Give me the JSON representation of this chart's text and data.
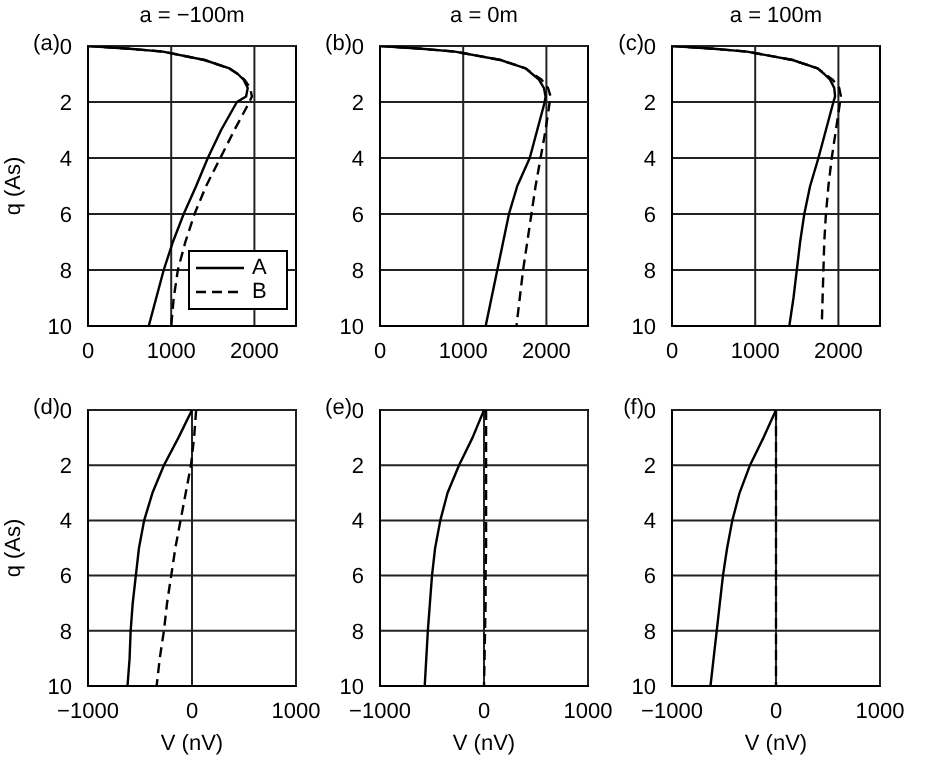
{
  "chart_data": [
    {
      "type": "line",
      "title": "a = −100m",
      "ylabel": "q (As)",
      "annotations": [
        "(a)"
      ],
      "xlim": [
        0,
        2500
      ],
      "xticks": [
        0,
        1000,
        2000
      ],
      "ylim": [
        10,
        0
      ],
      "yticks": [
        0,
        2,
        4,
        6,
        8,
        10
      ],
      "grid": true,
      "legend": "bottom right",
      "marker": "none",
      "series": [
        {
          "name": "A",
          "color": "#000000",
          "line_style": "solid",
          "x": [
            0,
            500,
            900,
            1400,
            1700,
            1800,
            1870,
            1920,
            1900,
            1790,
            1600,
            1440,
            1300,
            1150,
            1020,
            910,
            820,
            730
          ],
          "values": [
            0,
            0.1,
            0.2,
            0.5,
            0.8,
            1,
            1.2,
            1.5,
            1.8,
            2,
            3,
            4,
            5,
            6,
            7,
            8,
            9,
            10
          ]
        },
        {
          "name": "B",
          "color": "#000000",
          "line_style": "dashed",
          "x": [
            0,
            500,
            900,
            1400,
            1700,
            1800,
            1880,
            1950,
            1970,
            1940,
            1760,
            1590,
            1420,
            1280,
            1170,
            1080,
            1030,
            1000
          ],
          "values": [
            0,
            0.1,
            0.2,
            0.5,
            0.8,
            1,
            1.2,
            1.5,
            1.8,
            2,
            3,
            4,
            5,
            6,
            7,
            8,
            9,
            10
          ]
        }
      ]
    },
    {
      "type": "line",
      "title": "a = 0m",
      "annotations": [
        "(b)"
      ],
      "xlim": [
        0,
        2500
      ],
      "xticks": [
        0,
        1000,
        2000
      ],
      "ylim": [
        10,
        0
      ],
      "yticks": [
        0,
        2,
        4,
        6,
        8,
        10
      ],
      "grid": true,
      "marker": "none",
      "series": [
        {
          "color": "#000000",
          "line_style": "solid",
          "x": [
            0,
            500,
            900,
            1450,
            1750,
            1830,
            1910,
            1970,
            1990,
            1980,
            1890,
            1800,
            1650,
            1550,
            1480,
            1410,
            1340,
            1270
          ],
          "values": [
            0,
            0.1,
            0.2,
            0.5,
            0.8,
            1,
            1.2,
            1.5,
            1.8,
            2,
            3,
            4,
            5,
            6,
            7,
            8,
            9,
            10
          ]
        },
        {
          "color": "#000000",
          "line_style": "dashed",
          "x": [
            0,
            500,
            900,
            1450,
            1750,
            1840,
            1940,
            2020,
            2050,
            2040,
            1990,
            1930,
            1870,
            1820,
            1770,
            1720,
            1680,
            1640
          ],
          "values": [
            0,
            0.1,
            0.2,
            0.5,
            0.8,
            1,
            1.2,
            1.5,
            1.8,
            2,
            3,
            4,
            5,
            6,
            7,
            8,
            9,
            10
          ]
        }
      ]
    },
    {
      "type": "line",
      "title": "a = 100m",
      "annotations": [
        "(c)"
      ],
      "xlim": [
        0,
        2500
      ],
      "xticks": [
        0,
        1000,
        2000
      ],
      "ylim": [
        10,
        0
      ],
      "yticks": [
        0,
        2,
        4,
        6,
        8,
        10
      ],
      "grid": true,
      "marker": "none",
      "series": [
        {
          "color": "#000000",
          "line_style": "solid",
          "x": [
            0,
            500,
            900,
            1450,
            1750,
            1830,
            1900,
            1950,
            1960,
            1940,
            1850,
            1760,
            1660,
            1590,
            1540,
            1500,
            1460,
            1410
          ],
          "values": [
            0,
            0.1,
            0.2,
            0.5,
            0.8,
            1,
            1.2,
            1.5,
            1.8,
            2,
            3,
            4,
            5,
            6,
            7,
            8,
            9,
            10
          ]
        },
        {
          "color": "#000000",
          "line_style": "dashed",
          "x": [
            0,
            500,
            900,
            1450,
            1750,
            1840,
            1930,
            2010,
            2030,
            2020,
            1970,
            1920,
            1880,
            1850,
            1830,
            1820,
            1810,
            1800
          ],
          "values": [
            0,
            0.1,
            0.2,
            0.5,
            0.8,
            1,
            1.2,
            1.5,
            1.8,
            2,
            3,
            4,
            5,
            6,
            7,
            8,
            9,
            10
          ]
        }
      ]
    },
    {
      "type": "line",
      "xlabel": "V (nV)",
      "ylabel": "q (As)",
      "annotations": [
        "(d)"
      ],
      "xlim": [
        -1000,
        1000
      ],
      "xticks": [
        -1000,
        0,
        1000
      ],
      "ylim": [
        10,
        0
      ],
      "yticks": [
        0,
        2,
        4,
        6,
        8,
        10
      ],
      "grid": true,
      "marker": "none",
      "series": [
        {
          "color": "#000000",
          "line_style": "solid",
          "x": [
            0,
            -130,
            -270,
            -380,
            -460,
            -510,
            -540,
            -570,
            -590,
            -600,
            -620
          ],
          "values": [
            0,
            1,
            2,
            3,
            4,
            5,
            6,
            7,
            8,
            9,
            10
          ]
        },
        {
          "color": "#000000",
          "line_style": "dashed",
          "x": [
            40,
            20,
            -10,
            -60,
            -110,
            -160,
            -200,
            -240,
            -270,
            -310,
            -340
          ],
          "values": [
            0,
            1,
            2,
            3,
            4,
            5,
            6,
            7,
            8,
            9,
            10
          ]
        }
      ]
    },
    {
      "type": "line",
      "xlabel": "V (nV)",
      "annotations": [
        "(e)"
      ],
      "xlim": [
        -1000,
        1000
      ],
      "xticks": [
        -1000,
        0,
        1000
      ],
      "ylim": [
        10,
        0
      ],
      "yticks": [
        0,
        2,
        4,
        6,
        8,
        10
      ],
      "grid": true,
      "marker": "none",
      "series": [
        {
          "color": "#000000",
          "line_style": "solid",
          "x": [
            0,
            -110,
            -240,
            -350,
            -420,
            -470,
            -500,
            -520,
            -540,
            -555,
            -570
          ],
          "values": [
            0,
            1,
            2,
            3,
            4,
            5,
            6,
            7,
            8,
            9,
            10
          ]
        },
        {
          "color": "#000000",
          "line_style": "dashed",
          "x": [
            20,
            20,
            20,
            20,
            20,
            20,
            15,
            15,
            10,
            5,
            0
          ],
          "values": [
            0,
            1,
            2,
            3,
            4,
            5,
            6,
            7,
            8,
            9,
            10
          ]
        }
      ]
    },
    {
      "type": "line",
      "xlabel": "V (nV)",
      "annotations": [
        "(f)"
      ],
      "xlim": [
        -1000,
        1000
      ],
      "xticks": [
        -1000,
        0,
        1000
      ],
      "ylim": [
        10,
        0
      ],
      "yticks": [
        0,
        2,
        4,
        6,
        8,
        10
      ],
      "grid": true,
      "marker": "none",
      "series": [
        {
          "color": "#000000",
          "line_style": "solid",
          "x": [
            0,
            -120,
            -250,
            -350,
            -420,
            -470,
            -510,
            -540,
            -570,
            -600,
            -630
          ],
          "values": [
            0,
            1,
            2,
            3,
            4,
            5,
            6,
            7,
            8,
            9,
            10
          ]
        },
        {
          "color": "#000000",
          "line_style": "dashed",
          "x": [
            0,
            0,
            0,
            0,
            0,
            0,
            0,
            0,
            0,
            0,
            0
          ],
          "values": [
            0,
            1,
            2,
            3,
            4,
            5,
            6,
            7,
            8,
            9,
            10
          ]
        }
      ]
    }
  ]
}
